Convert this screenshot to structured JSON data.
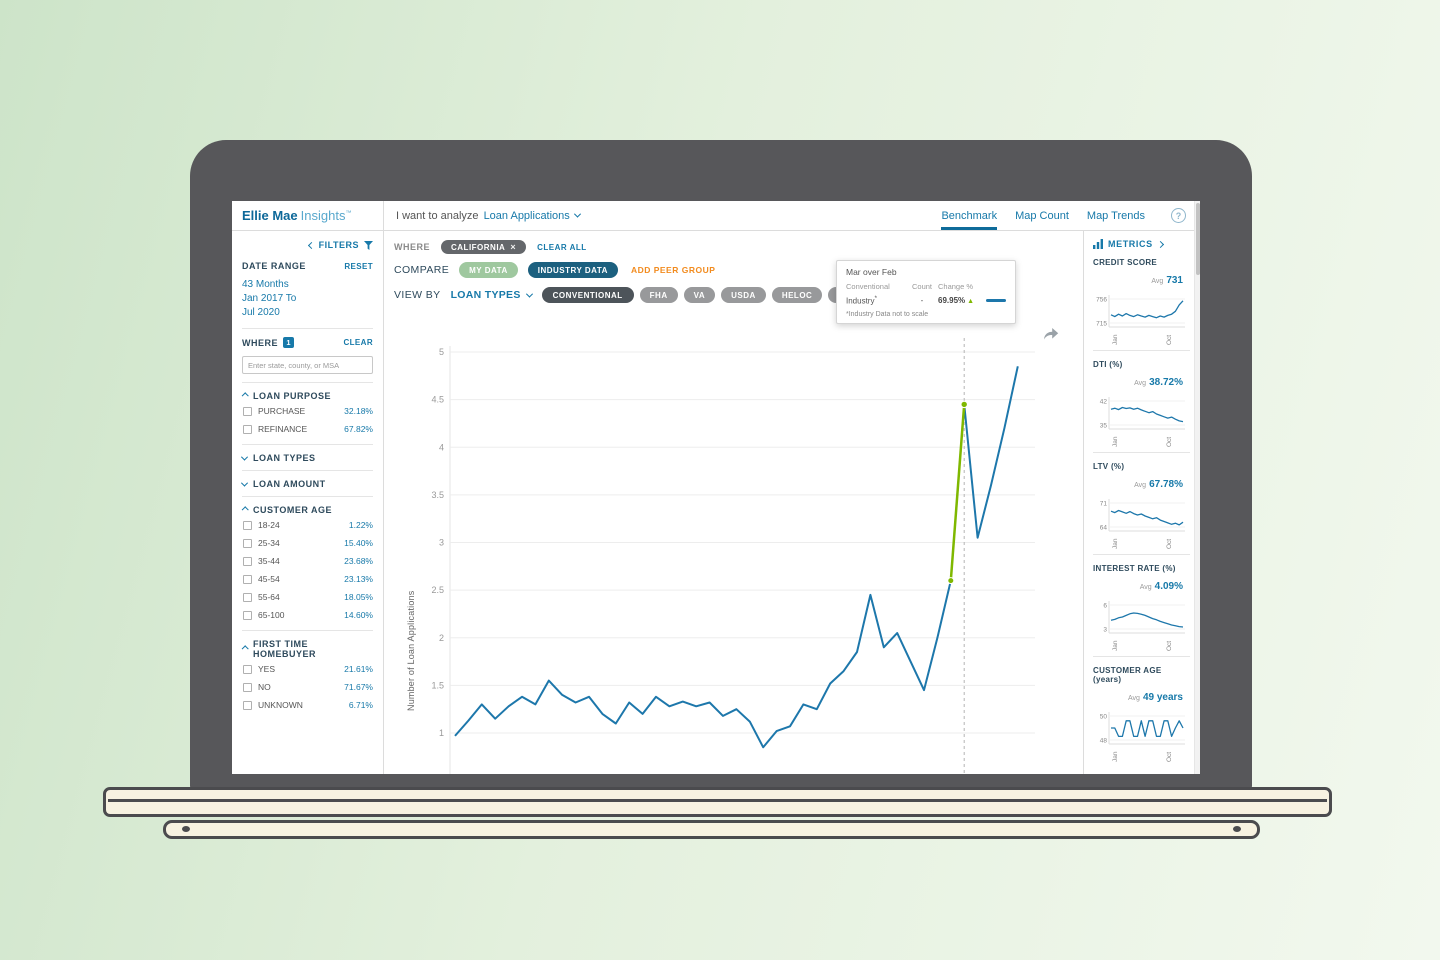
{
  "header": {
    "logo_primary": "Ellie Mae",
    "logo_secondary": "Insights",
    "logo_tm": "™",
    "analyze_label": "I want to analyze",
    "analyze_value": "Loan Applications",
    "nav": [
      {
        "label": "Benchmark",
        "active": true
      },
      {
        "label": "Map Count",
        "active": false
      },
      {
        "label": "Map Trends",
        "active": false
      }
    ],
    "help_label": "?"
  },
  "filters": {
    "collapse_label": "FILTERS",
    "date_range": {
      "title": "DATE RANGE",
      "reset_label": "RESET",
      "duration": "43 Months",
      "from": "Jan 2017 To",
      "to": "Jul 2020"
    },
    "where": {
      "title": "WHERE",
      "count_badge": "1",
      "clear_label": "CLEAR",
      "placeholder": "Enter state, county, or MSA"
    },
    "groups": [
      {
        "title": "LOAN PURPOSE",
        "expanded": true,
        "items": [
          {
            "label": "PURCHASE",
            "value": "32.18%"
          },
          {
            "label": "REFINANCE",
            "value": "67.82%"
          }
        ]
      },
      {
        "title": "LOAN TYPES",
        "expanded": false,
        "items": []
      },
      {
        "title": "LOAN AMOUNT",
        "expanded": false,
        "items": []
      },
      {
        "title": "CUSTOMER AGE",
        "expanded": true,
        "items": [
          {
            "label": "18-24",
            "value": "1.22%"
          },
          {
            "label": "25-34",
            "value": "15.40%"
          },
          {
            "label": "35-44",
            "value": "23.68%"
          },
          {
            "label": "45-54",
            "value": "23.13%"
          },
          {
            "label": "55-64",
            "value": "18.05%"
          },
          {
            "label": "65-100",
            "value": "14.60%"
          }
        ]
      },
      {
        "title": "FIRST TIME HOMEBUYER",
        "expanded": true,
        "items": [
          {
            "label": "YES",
            "value": "21.61%"
          },
          {
            "label": "NO",
            "value": "71.67%"
          },
          {
            "label": "UNKNOWN",
            "value": "6.71%"
          }
        ]
      }
    ]
  },
  "toolbar": {
    "where_label": "WHERE",
    "where_chip": "CALIFORNIA",
    "where_chip_close": "×",
    "clear_all_label": "CLEAR ALL",
    "compare_label": "COMPARE",
    "compare_chips": [
      {
        "label": "MY DATA"
      },
      {
        "label": "INDUSTRY DATA"
      }
    ],
    "add_peer_group_label": "ADD PEER GROUP",
    "view_by_label": "VIEW BY",
    "view_by_value": "LOAN TYPES",
    "loan_type_chips": [
      {
        "label": "CONVENTIONAL",
        "selected": true
      },
      {
        "label": "FHA",
        "selected": false
      },
      {
        "label": "VA",
        "selected": false
      },
      {
        "label": "USDA",
        "selected": false
      },
      {
        "label": "HELOC",
        "selected": false
      },
      {
        "label": "OTHER",
        "selected": false
      }
    ]
  },
  "tooltip": {
    "title": "Mar over Feb",
    "group_label": "Conventional",
    "col_count": "Count",
    "col_change": "Change %",
    "row_label": "Industry",
    "row_star": "*",
    "row_count": "-",
    "row_change": "69.95%",
    "row_arrow": "▲",
    "footnote": "*Industry Data not to scale"
  },
  "chart_data": {
    "type": "line",
    "title": "",
    "ylabel": "Number of Loan Applications",
    "series_name": "Industry — Conventional",
    "x_range": [
      "Jan 2017",
      "Jul 2020"
    ],
    "n_points": 43,
    "ylim": [
      0.75,
      5.1
    ],
    "yticks": [
      1,
      1.5,
      2,
      2.5,
      3,
      3.5,
      4,
      4.5,
      5
    ],
    "values": [
      0.97,
      1.13,
      1.3,
      1.15,
      1.28,
      1.38,
      1.3,
      1.55,
      1.4,
      1.32,
      1.38,
      1.2,
      1.1,
      1.32,
      1.2,
      1.38,
      1.28,
      1.33,
      1.28,
      1.32,
      1.18,
      1.25,
      1.12,
      0.85,
      1.02,
      1.07,
      1.3,
      1.25,
      1.52,
      1.65,
      1.85,
      2.45,
      1.9,
      2.05,
      1.75,
      1.45,
      2.0,
      2.6,
      4.45,
      3.05,
      3.6,
      4.2,
      4.85
    ],
    "highlight": {
      "from_index": 37,
      "to_index": 38,
      "from_month": "Feb 2020",
      "to_month": "Mar 2020",
      "change_pct": "69.95%"
    },
    "cursor_index": 38,
    "grid": true
  },
  "metrics": {
    "title": "METRICS",
    "items": [
      {
        "title": "CREDIT SCORE",
        "avg_label": "Avg",
        "avg_value": "731",
        "chart": {
          "type": "line",
          "ylim": [
            715,
            756
          ],
          "y_top_label": "756",
          "y_bottom_label": "715",
          "xticks": [
            "Jan",
            "Oct"
          ],
          "values": [
            729,
            726,
            730,
            727,
            731,
            728,
            726,
            729,
            727,
            725,
            728,
            726,
            724,
            727,
            725,
            728,
            730,
            735,
            746,
            753
          ]
        }
      },
      {
        "title": "DTI (%)",
        "avg_label": "Avg",
        "avg_value": "38.72%",
        "chart": {
          "type": "line",
          "ylim": [
            35,
            42
          ],
          "y_top_label": "42",
          "y_bottom_label": "35",
          "xticks": [
            "Jan",
            "Oct"
          ],
          "values": [
            39.6,
            39.9,
            39.5,
            40.1,
            39.8,
            40.0,
            39.6,
            39.9,
            39.4,
            39.0,
            38.6,
            38.9,
            38.2,
            37.8,
            37.4,
            37.0,
            37.3,
            36.7,
            36.2,
            36.0
          ]
        }
      },
      {
        "title": "LTV (%)",
        "avg_label": "Avg",
        "avg_value": "67.78%",
        "chart": {
          "type": "line",
          "ylim": [
            64,
            71
          ],
          "y_top_label": "71",
          "y_bottom_label": "64",
          "xticks": [
            "Jan",
            "Oct"
          ],
          "values": [
            68.6,
            68.2,
            68.8,
            68.4,
            68.0,
            68.5,
            67.9,
            67.5,
            67.8,
            67.2,
            66.8,
            66.4,
            66.7,
            66.0,
            65.6,
            65.2,
            64.8,
            65.1,
            64.6,
            65.4
          ]
        }
      },
      {
        "title": "INTEREST RATE (%)",
        "avg_label": "Avg",
        "avg_value": "4.09%",
        "chart": {
          "type": "line",
          "ylim": [
            3,
            6
          ],
          "y_top_label": "6",
          "y_bottom_label": "3",
          "xticks": [
            "Jan",
            "Oct"
          ],
          "values": [
            4.1,
            4.2,
            4.4,
            4.5,
            4.7,
            4.9,
            5.0,
            4.95,
            4.85,
            4.7,
            4.5,
            4.3,
            4.15,
            3.95,
            3.8,
            3.65,
            3.5,
            3.4,
            3.3,
            3.25
          ]
        }
      },
      {
        "title": "CUSTOMER AGE (years)",
        "avg_label": "Avg",
        "avg_value": "49 years",
        "chart": {
          "type": "line",
          "ylim": [
            48,
            50
          ],
          "y_top_label": "50",
          "y_bottom_label": "48",
          "xticks": [
            "Jan",
            "Oct"
          ],
          "values": [
            49,
            49,
            48.3,
            48.3,
            49.6,
            49.6,
            48.3,
            48.3,
            49.6,
            48.3,
            49.6,
            49.6,
            48.3,
            48.3,
            49.6,
            49.6,
            48.3,
            49,
            49.6,
            49
          ]
        }
      }
    ]
  },
  "colors": {
    "link_blue": "#1779a9",
    "logo_dark": "#0d6899",
    "logo_light": "#58a8cd",
    "navy": "#2e4a5c",
    "orange": "#f28b1e",
    "chip_green": "#9fc89f",
    "chip_industry": "#1c607f",
    "chip_where": "#64676b",
    "chip_gray": "#98999b",
    "chip_selected": "#4d545a",
    "line_blue": "#1d77ab",
    "highlight_green": "#7fb800",
    "grid": "#ededed"
  }
}
